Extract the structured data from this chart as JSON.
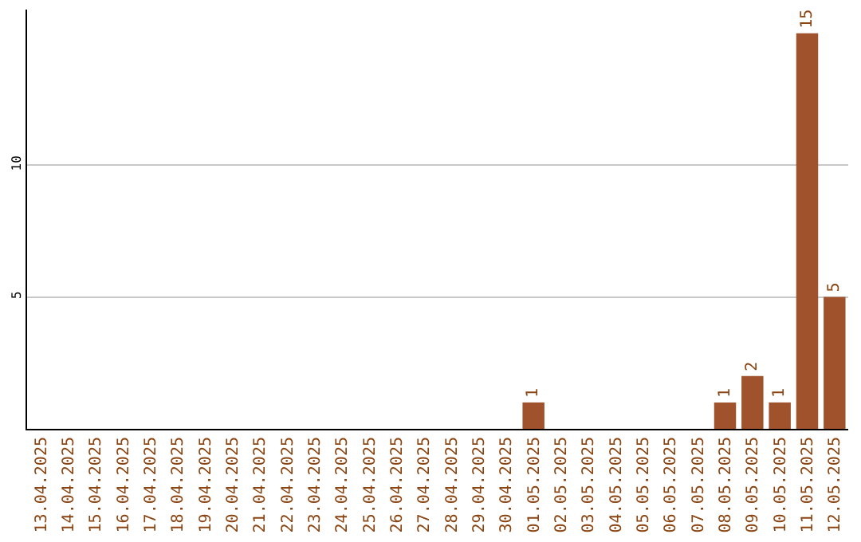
{
  "chart_data": {
    "type": "bar",
    "categories": [
      "13.04.2025",
      "14.04.2025",
      "15.04.2025",
      "16.04.2025",
      "17.04.2025",
      "18.04.2025",
      "19.04.2025",
      "20.04.2025",
      "21.04.2025",
      "22.04.2025",
      "23.04.2025",
      "24.04.2025",
      "25.04.2025",
      "26.04.2025",
      "27.04.2025",
      "28.04.2025",
      "29.04.2025",
      "30.04.2025",
      "01.05.2025",
      "02.05.2025",
      "03.05.2025",
      "04.05.2025",
      "05.05.2025",
      "06.05.2025",
      "07.05.2025",
      "08.05.2025",
      "09.05.2025",
      "10.05.2025",
      "11.05.2025",
      "12.05.2025"
    ],
    "values": [
      0,
      0,
      0,
      0,
      0,
      0,
      0,
      0,
      0,
      0,
      0,
      0,
      0,
      0,
      0,
      0,
      0,
      0,
      1,
      0,
      0,
      0,
      0,
      0,
      0,
      1,
      2,
      1,
      15,
      5
    ],
    "value_labels": [
      null,
      null,
      null,
      null,
      null,
      null,
      null,
      null,
      null,
      null,
      null,
      null,
      null,
      null,
      null,
      null,
      null,
      null,
      "1",
      null,
      null,
      null,
      null,
      null,
      null,
      "1",
      "2",
      "1",
      "15",
      "5"
    ],
    "color": "#a0522d",
    "ylim": [
      0,
      15.9
    ],
    "yticks": [
      5,
      10
    ],
    "grid": "y"
  }
}
